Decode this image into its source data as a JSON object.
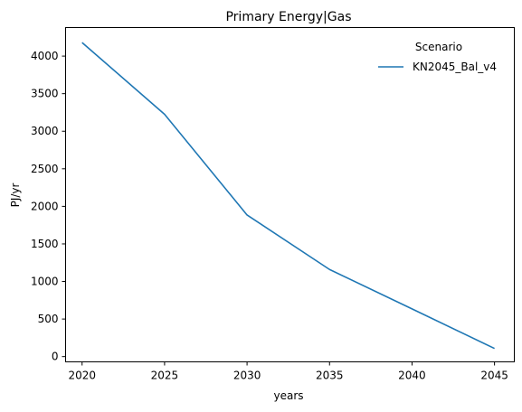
{
  "chart_data": {
    "type": "line",
    "title": "Primary Energy|Gas",
    "xlabel": "years",
    "ylabel": "PJ/yr",
    "x": [
      2020,
      2025,
      2030,
      2035,
      2040,
      2045
    ],
    "series": [
      {
        "name": "KN2045_Bal_v4",
        "values": [
          4180,
          3225,
          1885,
          1160,
          635,
          108
        ],
        "color": "#1f77b4"
      }
    ],
    "xlim": [
      2019,
      2046.2
    ],
    "ylim": [
      -70,
      4380
    ],
    "xticks": [
      2020,
      2025,
      2030,
      2035,
      2040,
      2045
    ],
    "yticks": [
      0,
      500,
      1000,
      1500,
      2000,
      2500,
      3000,
      3500,
      4000
    ],
    "grid": false,
    "legend": {
      "title": "Scenario",
      "placement": "top-right"
    }
  }
}
